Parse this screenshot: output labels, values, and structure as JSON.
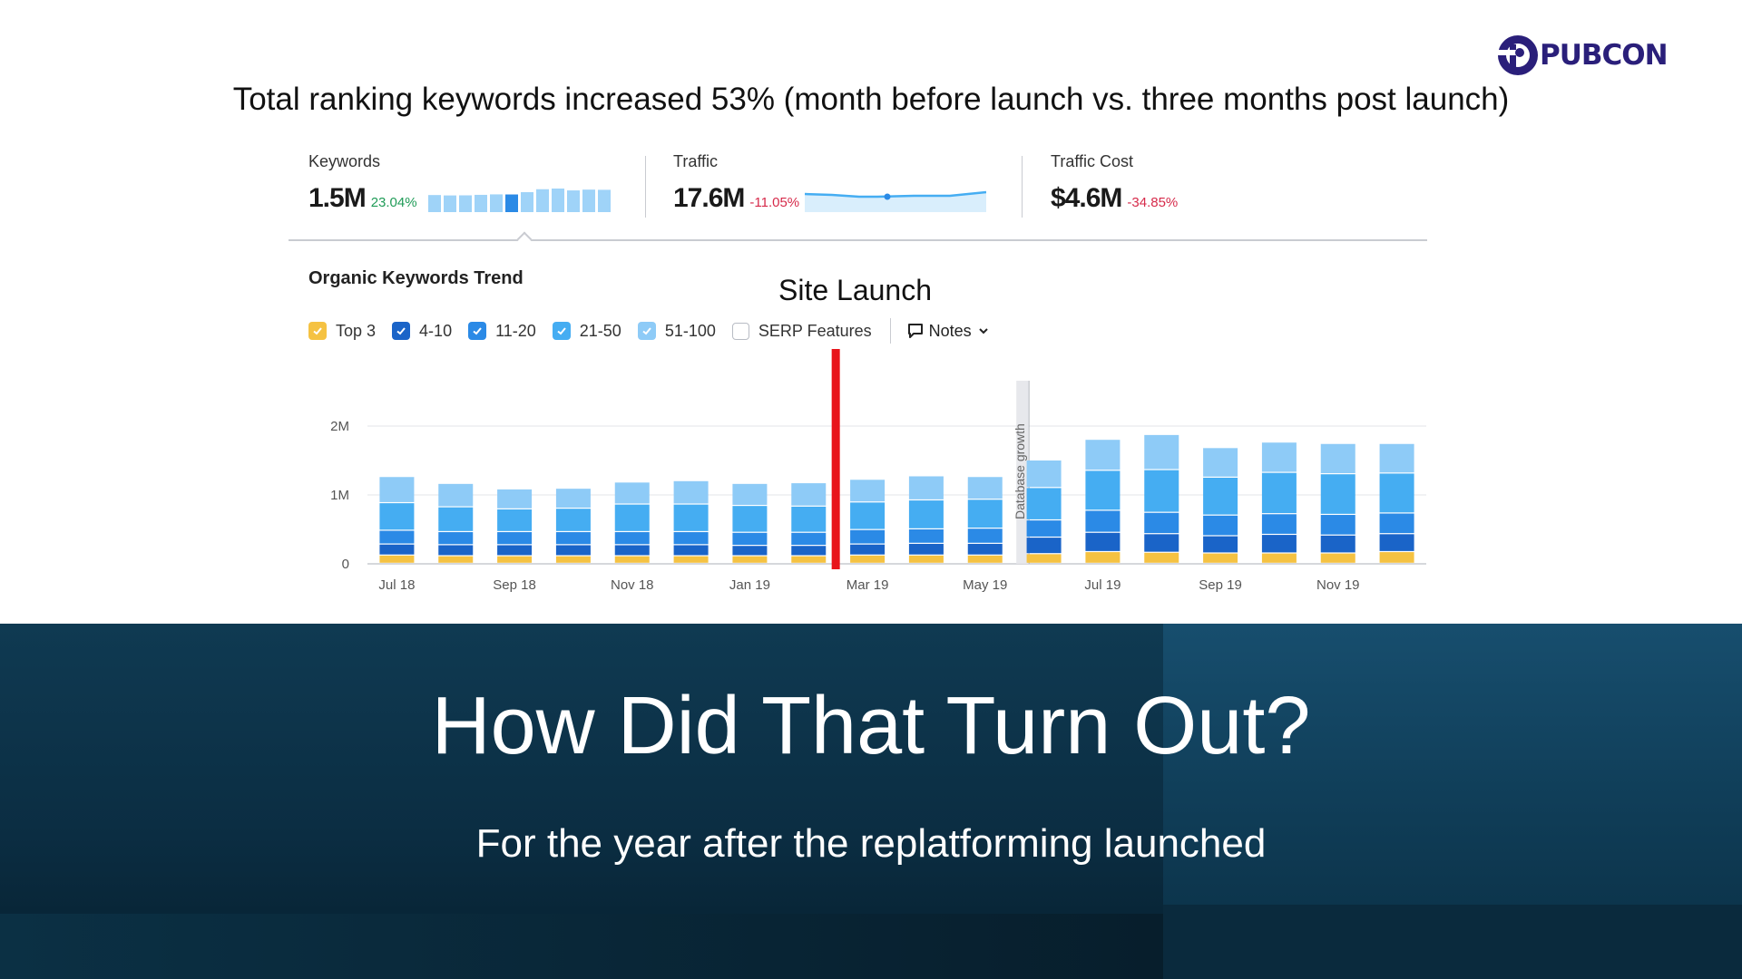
{
  "brand": {
    "logo_text": "PUBCON"
  },
  "headline": "Total ranking keywords increased 53% (month before launch vs. three months post launch)",
  "metrics": {
    "keywords": {
      "label": "Keywords",
      "value": "1.5M",
      "delta": "23.04%"
    },
    "traffic": {
      "label": "Traffic",
      "value": "17.6M",
      "delta": "-11.05%"
    },
    "traffic_cost": {
      "label": "Traffic Cost",
      "value": "$4.6M",
      "delta": "-34.85%"
    }
  },
  "trend": {
    "title": "Organic Keywords Trend",
    "annotation": "Site Launch",
    "legend": [
      {
        "label": "Top 3",
        "checked": true,
        "color": "#f5c242"
      },
      {
        "label": "4-10",
        "checked": true,
        "color": "#1a64c8"
      },
      {
        "label": "11-20",
        "checked": true,
        "color": "#2b8ae6"
      },
      {
        "label": "21-50",
        "checked": true,
        "color": "#45adf2"
      },
      {
        "label": "51-100",
        "checked": true,
        "color": "#8ecbf7"
      },
      {
        "label": "SERP Features",
        "checked": false,
        "color": "#ffffff"
      }
    ],
    "notes_label": "Notes"
  },
  "colors": {
    "top3": "#f5c242",
    "r4_10": "#1a64c8",
    "r11_20": "#2b8ae6",
    "r21_50": "#45adf2",
    "r51_100": "#8ecbf7",
    "positive": "#1f9b57",
    "negative": "#d62a4a",
    "launch_marker": "#e8141b"
  },
  "chart_data": {
    "type": "bar",
    "stacked": true,
    "categories": [
      "Jul 18",
      "Aug 18",
      "Sep 18",
      "Oct 18",
      "Nov 18",
      "Dec 18",
      "Jan 19",
      "Feb 19",
      "Mar 19",
      "Apr 19",
      "May 19",
      "Jun 19",
      "Jul 19",
      "Aug 19",
      "Sep 19",
      "Oct 19",
      "Nov 19",
      "Dec 19"
    ],
    "tick_labels": [
      "Jul 18",
      "Sep 18",
      "Nov 18",
      "Jan 19",
      "Mar 19",
      "May 19",
      "Jul 19",
      "Sep 19",
      "Nov 19"
    ],
    "y_ticks": [
      {
        "value": 0,
        "label": "0"
      },
      {
        "value": 1000000,
        "label": "1M"
      },
      {
        "value": 2000000,
        "label": "2M"
      }
    ],
    "ylim": [
      0,
      2000000
    ],
    "series": [
      {
        "name": "Top 3",
        "values": [
          120000,
          110000,
          110000,
          110000,
          110000,
          110000,
          110000,
          110000,
          120000,
          120000,
          120000,
          140000,
          170000,
          160000,
          150000,
          150000,
          150000,
          170000
        ]
      },
      {
        "name": "4-10",
        "values": [
          160000,
          160000,
          160000,
          160000,
          160000,
          160000,
          150000,
          150000,
          160000,
          170000,
          170000,
          240000,
          280000,
          270000,
          250000,
          270000,
          260000,
          260000
        ]
      },
      {
        "name": "11-20",
        "values": [
          200000,
          190000,
          190000,
          190000,
          190000,
          190000,
          190000,
          190000,
          210000,
          210000,
          220000,
          250000,
          320000,
          310000,
          300000,
          300000,
          300000,
          300000
        ]
      },
      {
        "name": "21-50",
        "values": [
          400000,
          360000,
          330000,
          340000,
          400000,
          400000,
          390000,
          380000,
          400000,
          420000,
          420000,
          470000,
          580000,
          620000,
          550000,
          600000,
          590000,
          580000
        ]
      },
      {
        "name": "51-100",
        "values": [
          380000,
          340000,
          290000,
          290000,
          320000,
          340000,
          320000,
          340000,
          330000,
          350000,
          330000,
          400000,
          450000,
          510000,
          430000,
          440000,
          440000,
          430000
        ]
      }
    ],
    "annotations": [
      {
        "text": "Database growth",
        "x": "Jun 19"
      }
    ],
    "launch_marker": {
      "label": "Site Launch",
      "x": "Mar 19"
    },
    "grid": true
  },
  "bottom": {
    "title": "How Did That Turn Out?",
    "subtitle": "For the year after the replatforming launched"
  }
}
